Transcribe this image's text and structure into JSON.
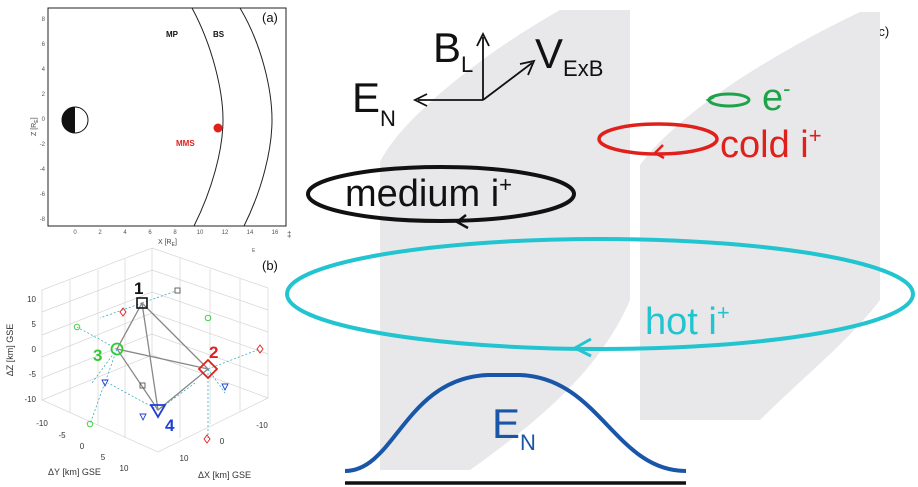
{
  "panel_a": {
    "label": "(a)",
    "mp_label": "MP",
    "bs_label": "BS",
    "mms_label": "MMS",
    "x_axis_label": "X [R",
    "x_axis_sub": "E",
    "x_axis_close": "]",
    "y_axis_label": "Z [R",
    "y_axis_sub": "E",
    "y_axis_close": "]",
    "x_ticks": [
      "0",
      "2",
      "4",
      "6",
      "8",
      "10",
      "12",
      "14",
      "16"
    ],
    "y_ticks": [
      "8",
      "6",
      "4",
      "2",
      "0",
      "-2",
      "-4",
      "-6",
      "-8"
    ],
    "corner_mark": "‡",
    "mms_color": "#e0201b"
  },
  "panel_b": {
    "label": "(b)",
    "sc1": "1",
    "sc2": "2",
    "sc3": "3",
    "sc4": "4",
    "sc1_color": "#111111",
    "sc2_color": "#e0201b",
    "sc3_color": "#2fcc2f",
    "sc4_color": "#1f3fd6",
    "z_axis_label": "ΔZ [km] GSE",
    "y_axis_label": "ΔY [km] GSE",
    "x_axis_label": "ΔX [km] GSE",
    "z_ticks": [
      "10",
      "5",
      "0",
      "-5",
      "-10"
    ],
    "y_ticks": [
      "-10",
      "-5",
      "0",
      "5",
      "10"
    ],
    "x_ticks": [
      "10",
      "0",
      "-10"
    ],
    "top_axis_mark": "E"
  },
  "panel_c": {
    "label": "(c)",
    "b_main": "B",
    "b_sub": "L",
    "v_main": "V",
    "v_sub": "ExB",
    "e_main": "E",
    "e_sub": "N",
    "electron": "e",
    "electron_sup": "-",
    "cold_ion": "cold i",
    "cold_sup": "+",
    "medium_ion": "medium i",
    "medium_sup": "+",
    "hot_ion": "hot i",
    "hot_sup": "+",
    "profile_main": "E",
    "profile_sub": "N",
    "colors": {
      "electron": "#1fa34a",
      "cold": "#e0201b",
      "medium": "#111111",
      "hot": "#22c4cf",
      "profile": "#1a56a8",
      "sheet": "#e8e8ea"
    }
  }
}
